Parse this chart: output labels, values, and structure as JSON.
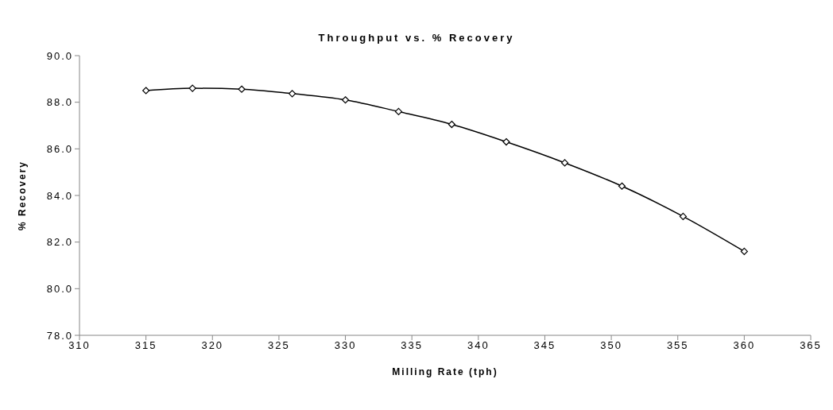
{
  "chart_data": {
    "type": "line",
    "title": "Throughput vs. % Recovery",
    "xlabel": "Milling Rate (tph)",
    "ylabel": "% Recovery",
    "x": [
      315,
      318.5,
      322.2,
      326,
      330,
      334,
      338,
      342.1,
      346.5,
      350.8,
      355.4,
      360
    ],
    "series": [
      {
        "color": "#000000",
        "values": [
          88.5,
          88.6,
          88.56,
          88.37,
          88.1,
          87.6,
          87.05,
          86.3,
          85.4,
          84.4,
          83.1,
          81.6
        ]
      }
    ],
    "xlim": [
      310,
      365
    ],
    "xticks": [
      310,
      315,
      320,
      325,
      330,
      335,
      340,
      345,
      350,
      355,
      360,
      365
    ],
    "ylim": [
      78,
      90
    ],
    "yticks": [
      {
        "value": 78,
        "label": "78.0"
      },
      {
        "value": 80,
        "label": "80.0"
      },
      {
        "value": 82,
        "label": "82.0"
      },
      {
        "value": 84,
        "label": "84.0"
      },
      {
        "value": 86,
        "label": "86.0"
      },
      {
        "value": 88,
        "label": "88.0"
      },
      {
        "value": 90,
        "label": "90.0"
      }
    ],
    "grid": false,
    "legend": false,
    "marker": "diamond",
    "line_style": "solid"
  }
}
